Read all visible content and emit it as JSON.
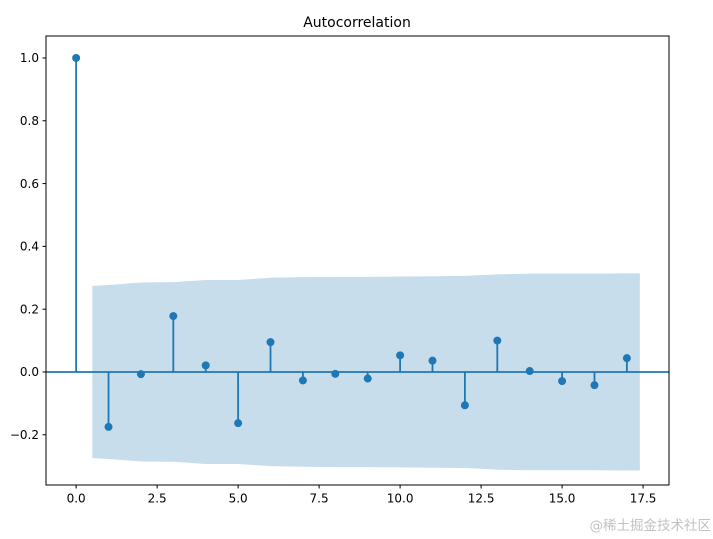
{
  "chart_data": {
    "type": "scatter",
    "style": "stem",
    "description": "Autocorrelation function (ACF) stem plot with shaded confidence band",
    "title": "Autocorrelation",
    "xlabel": "",
    "ylabel": "",
    "x": [
      0,
      1,
      2,
      3,
      4,
      5,
      6,
      7,
      8,
      9,
      10,
      11,
      12,
      13,
      14,
      15,
      16,
      17
    ],
    "values": [
      1.0,
      -0.175,
      -0.007,
      0.178,
      0.021,
      -0.163,
      0.095,
      -0.027,
      -0.006,
      -0.021,
      0.053,
      0.036,
      -0.106,
      0.1,
      0.003,
      -0.029,
      -0.042,
      0.044
    ],
    "confidence_band": {
      "x": [
        0.5,
        1,
        2,
        3,
        4,
        5,
        6,
        7,
        8,
        9,
        10,
        11,
        12,
        13,
        14,
        15,
        16,
        17,
        17.4
      ],
      "upper": [
        0.274,
        0.277,
        0.285,
        0.286,
        0.293,
        0.293,
        0.3,
        0.302,
        0.303,
        0.303,
        0.304,
        0.305,
        0.306,
        0.311,
        0.313,
        0.313,
        0.313,
        0.314,
        0.314
      ],
      "lower": [
        -0.274,
        -0.277,
        -0.285,
        -0.286,
        -0.293,
        -0.293,
        -0.3,
        -0.302,
        -0.303,
        -0.303,
        -0.304,
        -0.305,
        -0.306,
        -0.311,
        -0.313,
        -0.313,
        -0.313,
        -0.314,
        -0.314
      ]
    },
    "xlim": [
      -0.93,
      18.3
    ],
    "ylim": [
      -0.36,
      1.07
    ],
    "xticks": {
      "values": [
        0,
        2.5,
        5,
        7.5,
        10,
        12.5,
        15,
        17.5
      ],
      "labels": [
        "0.0",
        "2.5",
        "5.0",
        "7.5",
        "10.0",
        "12.5",
        "15.0",
        "17.5"
      ]
    },
    "yticks": {
      "values": [
        -0.2,
        0.0,
        0.2,
        0.4,
        0.6,
        0.8,
        1.0
      ],
      "labels": [
        "−0.2",
        "0.0",
        "0.2",
        "0.4",
        "0.6",
        "0.8",
        "1.0"
      ]
    },
    "grid": false,
    "legend": null,
    "colors": {
      "line": "#1f77b4",
      "marker": "#1f77b4",
      "band_fill": "#1f77b4",
      "band_opacity": 0.25,
      "axis": "#000000",
      "text": "#000000",
      "background": "#ffffff"
    }
  },
  "watermark": {
    "text": "@稀土掘金技术社区",
    "color": "#c2c2c2"
  }
}
